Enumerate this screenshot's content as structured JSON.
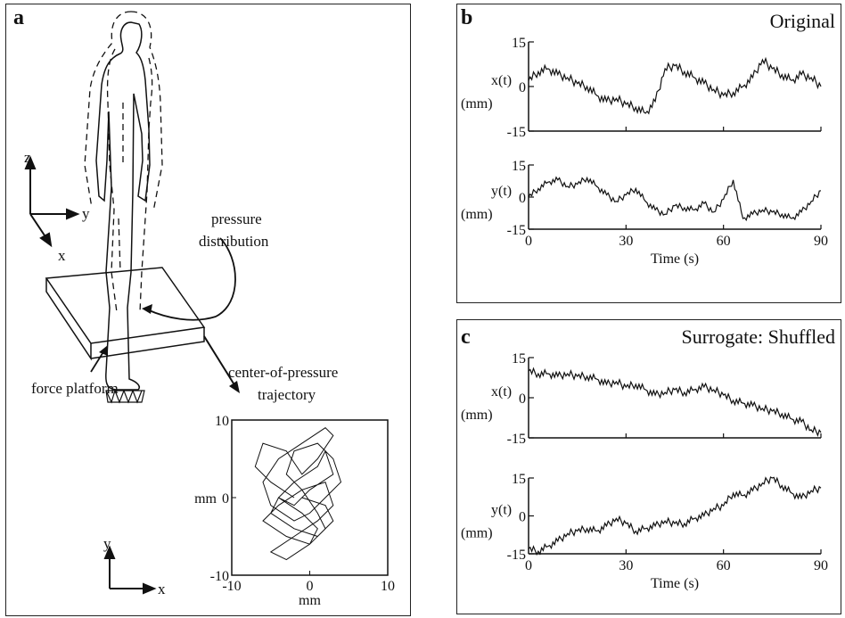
{
  "panel_a": {
    "label": "a",
    "axes3d": {
      "z": "z",
      "y": "y",
      "x": "x"
    },
    "pressure_label": [
      "pressure",
      "distribution"
    ],
    "platform_label": "force platform",
    "cop_label": [
      "center-of-pressure",
      "trajectory"
    ],
    "axes2d": {
      "y": "y",
      "x": "x"
    }
  },
  "panel_b": {
    "label": "b",
    "title": "Original",
    "xlabel": "Time (s)"
  },
  "panel_c": {
    "label": "c",
    "title": "Surrogate:  Shuffled",
    "xlabel": "Time (s)"
  },
  "chart_data": [
    {
      "type": "line",
      "title": "Original",
      "ylabel": [
        "x(t)",
        "(mm)"
      ],
      "yticks": [
        "15",
        "0",
        "-15"
      ],
      "ylim": [
        -15,
        15
      ],
      "xlim": [
        0,
        90
      ],
      "x": [
        0,
        3,
        6,
        9,
        12,
        15,
        18,
        21,
        24,
        27,
        30,
        33,
        36,
        39,
        42,
        45,
        48,
        51,
        54,
        57,
        60,
        63,
        66,
        69,
        72,
        75,
        78,
        81,
        84,
        87,
        90
      ],
      "series": [
        {
          "values": [
            2,
            5,
            6,
            4,
            3,
            1,
            0,
            -3,
            -5,
            -4,
            -6,
            -7,
            -9,
            -5,
            6,
            7,
            5,
            3,
            1,
            -1,
            -3,
            -2,
            0,
            3,
            9,
            6,
            4,
            2,
            4,
            3,
            0
          ]
        }
      ]
    },
    {
      "type": "line",
      "ylabel": [
        "y(t)",
        "(mm)"
      ],
      "yticks": [
        "15",
        "0",
        "-15"
      ],
      "ylim": [
        -15,
        15
      ],
      "xlim": [
        0,
        90
      ],
      "xticks": [
        "0",
        "30",
        "60",
        "90"
      ],
      "xlabel": "Time (s)",
      "x": [
        0,
        3,
        6,
        9,
        12,
        15,
        18,
        21,
        24,
        27,
        30,
        33,
        36,
        39,
        42,
        45,
        48,
        51,
        54,
        57,
        60,
        63,
        66,
        69,
        72,
        75,
        78,
        81,
        84,
        87,
        90
      ],
      "series": [
        {
          "values": [
            0,
            4,
            7,
            8,
            5,
            6,
            9,
            5,
            1,
            -2,
            1,
            4,
            -2,
            -6,
            -8,
            -4,
            -5,
            -6,
            -3,
            -7,
            -1,
            8,
            -10,
            -8,
            -6,
            -7,
            -8,
            -10,
            -7,
            -2,
            3
          ]
        }
      ]
    },
    {
      "type": "line",
      "title": "Surrogate:  Shuffled",
      "ylabel": [
        "x(t)",
        "(mm)"
      ],
      "yticks": [
        "15",
        "0",
        "-15"
      ],
      "ylim": [
        -15,
        15
      ],
      "xlim": [
        0,
        90
      ],
      "x": [
        0,
        3,
        6,
        9,
        12,
        15,
        18,
        21,
        24,
        27,
        30,
        33,
        36,
        39,
        42,
        45,
        48,
        51,
        54,
        57,
        60,
        63,
        66,
        69,
        72,
        75,
        78,
        81,
        84,
        87,
        90
      ],
      "series": [
        {
          "values": [
            10,
            9,
            9,
            8,
            9,
            8,
            8,
            7,
            5,
            6,
            4,
            5,
            3,
            1,
            2,
            3,
            2,
            3,
            4,
            3,
            1,
            -1,
            -2,
            -3,
            -4,
            -5,
            -6,
            -8,
            -9,
            -12,
            -13
          ]
        }
      ]
    },
    {
      "type": "line",
      "ylabel": [
        "y(t)",
        "(mm)"
      ],
      "yticks": [
        "15",
        "0",
        "-15"
      ],
      "ylim": [
        -15,
        15
      ],
      "xlim": [
        0,
        90
      ],
      "xticks": [
        "0",
        "30",
        "60",
        "90"
      ],
      "xlabel": "Time (s)",
      "x": [
        0,
        3,
        6,
        9,
        12,
        15,
        18,
        21,
        24,
        27,
        30,
        33,
        36,
        39,
        42,
        45,
        48,
        51,
        54,
        57,
        60,
        63,
        66,
        69,
        72,
        75,
        78,
        81,
        84,
        87,
        90
      ],
      "series": [
        {
          "values": [
            -13,
            -14,
            -12,
            -10,
            -7,
            -6,
            -5,
            -6,
            -4,
            -1,
            -3,
            -6,
            -5,
            -4,
            -2,
            -3,
            -3,
            -1,
            0,
            3,
            4,
            9,
            8,
            10,
            13,
            15,
            12,
            9,
            7,
            10,
            11
          ]
        }
      ]
    },
    {
      "type": "scatter",
      "xlabel": "mm",
      "ylabel": "mm",
      "xlim": [
        -10,
        10
      ],
      "ylim": [
        -10,
        10
      ],
      "xticks": [
        "-10",
        "0",
        "10"
      ],
      "yticks": [
        "10",
        "0",
        "-10"
      ],
      "x": [
        -2,
        -5,
        -7,
        -6,
        -3,
        -1,
        1,
        3,
        2,
        -1,
        -4,
        -6,
        -5,
        -2,
        0,
        2,
        4,
        3,
        1,
        -2,
        -3,
        -1,
        1,
        2,
        0,
        -3,
        -6,
        -4,
        -1,
        2,
        3,
        1,
        -2,
        -5,
        -3,
        0,
        1,
        -1,
        -4,
        -2,
        1,
        2,
        3,
        0,
        -2,
        -4,
        -5,
        -2,
        1,
        3,
        2,
        -1
      ],
      "y": [
        0,
        2,
        4,
        7,
        6,
        3,
        5,
        8,
        9,
        7,
        5,
        2,
        -1,
        -3,
        -2,
        0,
        2,
        5,
        7,
        6,
        3,
        1,
        -2,
        -4,
        -6,
        -5,
        -3,
        -1,
        1,
        2,
        -1,
        -3,
        -5,
        -7,
        -8,
        -6,
        -4,
        -2,
        0,
        2,
        4,
        6,
        3,
        1,
        -1,
        0,
        -2,
        -4,
        -5,
        -3,
        -1,
        0
      ]
    }
  ]
}
